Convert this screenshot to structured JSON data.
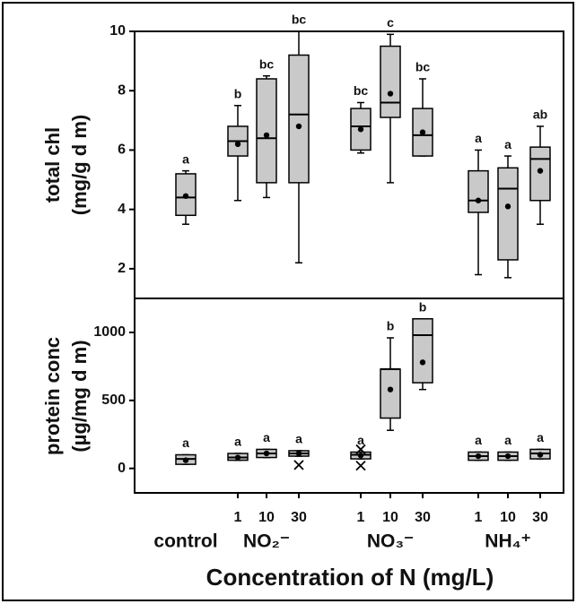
{
  "chart_data": [
    {
      "type": "box",
      "ylabel": [
        "total chl",
        "(mg/g d m)"
      ],
      "ylim": [
        1,
        10
      ],
      "yticks": [
        2,
        4,
        6,
        8,
        10
      ],
      "color": "#c9c9c9",
      "min": [
        3.5,
        4.3,
        4.4,
        2.2,
        5.9,
        4.9,
        5.8,
        1.8,
        1.7,
        3.5
      ],
      "q1": [
        3.8,
        5.8,
        4.9,
        4.9,
        6.0,
        7.1,
        5.8,
        3.9,
        2.3,
        4.3
      ],
      "median": [
        4.4,
        6.3,
        6.4,
        7.2,
        6.8,
        7.6,
        6.5,
        4.3,
        4.7,
        5.7
      ],
      "q3": [
        5.2,
        6.8,
        8.4,
        9.2,
        7.4,
        9.5,
        7.4,
        5.3,
        5.4,
        6.1
      ],
      "max": [
        5.3,
        7.5,
        8.5,
        10,
        7.6,
        9.9,
        8.4,
        6.0,
        5.8,
        6.8
      ],
      "mean": [
        4.45,
        6.2,
        6.5,
        6.8,
        6.7,
        7.9,
        6.6,
        4.3,
        4.1,
        5.3
      ],
      "outliers": [
        [],
        [],
        [],
        [],
        [],
        [],
        [],
        [],
        [],
        []
      ],
      "letters": [
        "a",
        "b",
        "bc",
        "bc",
        "bc",
        "c",
        "bc",
        "a",
        "a",
        "ab"
      ]
    },
    {
      "type": "box",
      "ylabel": [
        "protein conc",
        "(µg/mg d m)"
      ],
      "ylim": [
        -180,
        1250
      ],
      "yticks": [
        0,
        500,
        1000
      ],
      "color": "#c9c9c9",
      "min": [
        30,
        60,
        80,
        90,
        70,
        280,
        580,
        60,
        60,
        70
      ],
      "q1": [
        30,
        60,
        80,
        90,
        70,
        370,
        630,
        60,
        60,
        70
      ],
      "median": [
        70,
        80,
        110,
        110,
        100,
        730,
        980,
        90,
        90,
        110
      ],
      "q3": [
        100,
        110,
        140,
        130,
        120,
        730,
        1100,
        120,
        120,
        140
      ],
      "max": [
        100,
        110,
        140,
        130,
        120,
        960,
        1100,
        120,
        120,
        140
      ],
      "mean": [
        60,
        80,
        110,
        110,
        95,
        580,
        780,
        90,
        90,
        100
      ],
      "outliers": [
        [],
        [],
        [],
        [
          25
        ],
        [
          140,
          20
        ],
        [],
        [],
        [],
        [],
        []
      ],
      "letters": [
        "a",
        "a",
        "a",
        "a",
        "a",
        "b",
        "b",
        "a",
        "a",
        "a"
      ],
      "categories": [
        null,
        "1",
        "10",
        "30",
        "1",
        "10",
        "30",
        "1",
        "10",
        "30"
      ],
      "groups": [
        "control",
        "NO₂⁻",
        "NO₃⁻",
        "NH₄⁺"
      ],
      "xlabel": "Concentration of N (mg/L)"
    }
  ]
}
